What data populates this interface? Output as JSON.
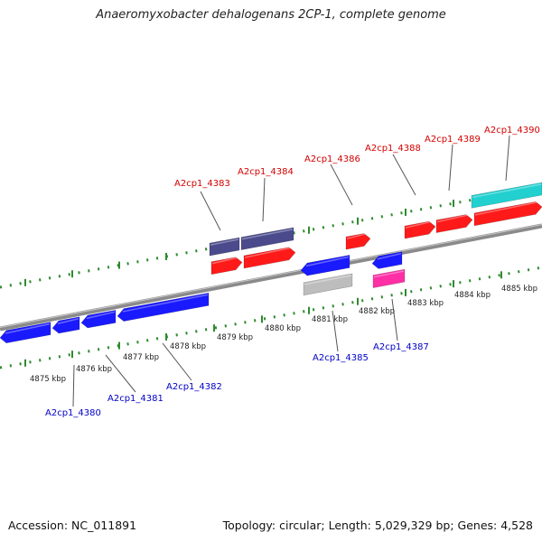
{
  "title": "Anaeromyxobacter dehalogenans 2CP-1, complete genome",
  "footer": {
    "accession": "Accession: NC_011891",
    "summary": "Topology: circular; Length: 5,029,329 bp; Genes: 4,528"
  },
  "kbp_labels": [
    "4875 kbp",
    "4876 kbp",
    "4877 kbp",
    "4878 kbp",
    "4879 kbp",
    "4880 kbp",
    "4881 kbp",
    "4882 kbp",
    "4883 kbp",
    "4884 kbp",
    "4885 kbp"
  ],
  "colors": {
    "backbone": "#8a8a8a",
    "tick": "#2e8b2e",
    "forward_label": "#d40000",
    "reverse_label": "#0000c8",
    "red": "#ff1a1a",
    "blue": "#1a1aff",
    "purple": "#4a4a8c",
    "cyan": "#22d0d0",
    "gray": "#bdbdbd",
    "magenta": "#ff2fa6"
  },
  "genes_forward_labels": [
    "A2cp1_4383",
    "A2cp1_4384",
    "A2cp1_4386",
    "A2cp1_4388",
    "A2cp1_4389",
    "A2cp1_4390"
  ],
  "genes_reverse_labels": [
    "A2cp1_4380",
    "A2cp1_4381",
    "A2cp1_4382",
    "A2cp1_4385",
    "A2cp1_4387"
  ]
}
